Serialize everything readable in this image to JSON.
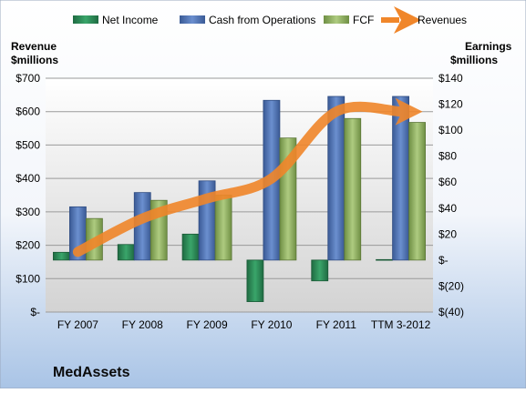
{
  "chart_data": {
    "type": "bar",
    "title": "MedAssets",
    "categories": [
      "FY 2007",
      "FY 2008",
      "FY 2009",
      "FY 2010",
      "FY 2011",
      "TTM 3-2012"
    ],
    "left_axis": {
      "label_line1": "Revenue",
      "label_line2": "$millions",
      "range": [
        0,
        700
      ],
      "ticks": [
        0,
        100,
        200,
        300,
        400,
        500,
        600,
        700
      ],
      "tick_labels": [
        "$-",
        "$100",
        "$200",
        "$300",
        "$400",
        "$500",
        "$600",
        "$700"
      ]
    },
    "right_axis": {
      "label_line1": "Earnings",
      "label_line2": "$millions",
      "range": [
        -40,
        140
      ],
      "ticks": [
        -40,
        -20,
        0,
        20,
        40,
        60,
        80,
        100,
        120,
        140
      ],
      "tick_labels": [
        "$(40)",
        "$(20)",
        "$-",
        "$20",
        "$40",
        "$60",
        "$80",
        "$100",
        "$120",
        "$140"
      ]
    },
    "series": [
      {
        "name": "Net Income",
        "axis": "right",
        "kind": "bar",
        "color": "#2e8b57",
        "values": [
          6,
          12,
          20,
          -32,
          -16,
          0.4
        ]
      },
      {
        "name": "Cash from Operations",
        "axis": "right",
        "kind": "bar",
        "color": "#4f73b5",
        "values": [
          41,
          52,
          61,
          123,
          126,
          126
        ]
      },
      {
        "name": "FCF",
        "axis": "right",
        "kind": "bar",
        "color": "#93b367",
        "values": [
          32,
          46,
          50,
          94,
          109,
          106
        ]
      },
      {
        "name": "Revenues",
        "axis": "left",
        "kind": "line",
        "color": "#f0862a",
        "values": [
          180,
          280,
          340,
          400,
          600,
          600
        ]
      }
    ],
    "legend_position": "top",
    "grid": true
  }
}
